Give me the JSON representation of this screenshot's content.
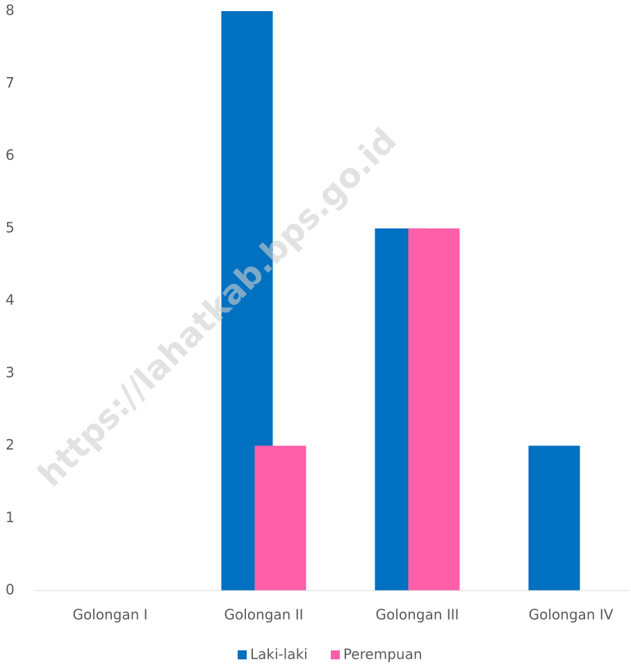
{
  "chart_data": {
    "type": "bar",
    "categories": [
      "Golongan I",
      "Golongan II",
      "Golongan III",
      "Golongan IV"
    ],
    "series": [
      {
        "name": "Laki-laki",
        "color": "#0070c0",
        "values": [
          0,
          8,
          5,
          2
        ]
      },
      {
        "name": "Perempuan",
        "color": "#ff5fa8",
        "values": [
          0,
          2,
          5,
          0
        ]
      }
    ],
    "ylim": [
      0,
      8
    ],
    "yticks": [
      0,
      1,
      2,
      3,
      4,
      5,
      6,
      7,
      8
    ],
    "grid": false,
    "legend": "bottom",
    "watermark": "https://lahatkab.bps.go.id"
  }
}
